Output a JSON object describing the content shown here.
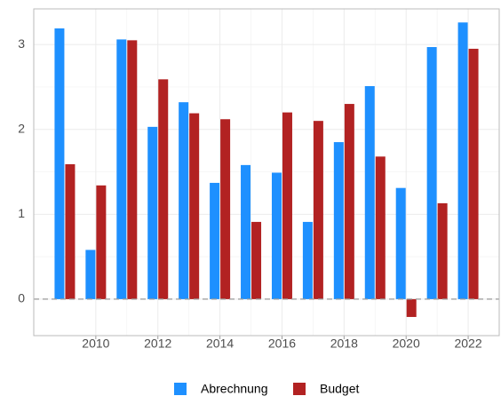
{
  "chart_data": {
    "type": "bar",
    "x": [
      2009,
      2010,
      2011,
      2012,
      2013,
      2014,
      2015,
      2016,
      2017,
      2018,
      2019,
      2020,
      2021,
      2022
    ],
    "series": [
      {
        "name": "Abrechnung",
        "color": "#1e90ff",
        "values": [
          3.19,
          0.58,
          3.06,
          2.03,
          2.32,
          1.37,
          1.58,
          1.49,
          0.91,
          1.85,
          2.51,
          1.31,
          2.97,
          3.26
        ]
      },
      {
        "name": "Budget",
        "color": "#b22222",
        "values": [
          1.59,
          1.34,
          3.05,
          2.59,
          2.19,
          2.12,
          0.91,
          2.2,
          2.1,
          2.3,
          1.68,
          -0.21,
          1.13,
          2.95
        ]
      }
    ],
    "xlim": [
      2008,
      2023
    ],
    "xticks": [
      2010,
      2012,
      2014,
      2016,
      2018,
      2020,
      2022
    ],
    "ylim": [
      -0.43,
      3.42
    ],
    "yticks": [
      0,
      1,
      2,
      3
    ],
    "hline": 0,
    "grid": true,
    "legend": "bottom"
  }
}
